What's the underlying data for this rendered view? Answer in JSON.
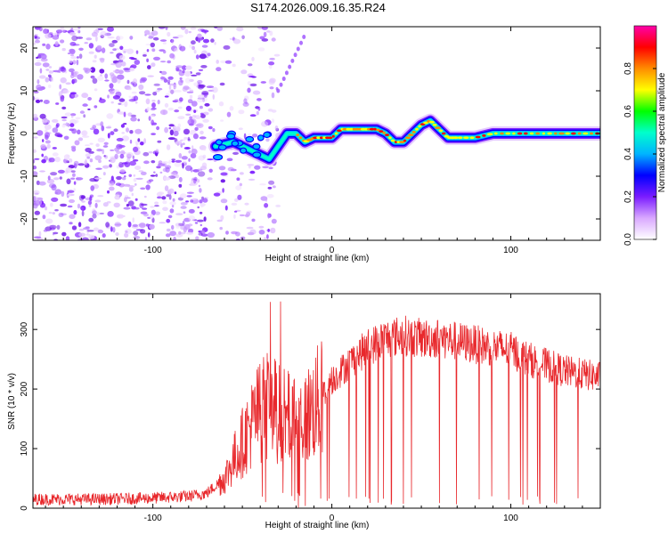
{
  "title": "S174.2026.009.16.35.R24",
  "chart_data": [
    {
      "type": "heatmap",
      "name": "spectrogram",
      "xlabel": "Height of straight line (km)",
      "ylabel": "Frequency (Hz)",
      "xlim": [
        -167,
        150
      ],
      "ylim": [
        -25,
        25
      ],
      "x_ticks": [
        -100,
        0,
        100
      ],
      "x_tick_labels": [
        "-100",
        "0",
        "100"
      ],
      "y_ticks": [
        -20,
        -10,
        0,
        10,
        20
      ],
      "y_tick_labels": [
        "-20",
        "-10",
        "0",
        "10",
        "20"
      ],
      "ridge": {
        "x": [
          -65,
          -55,
          -45,
          -35,
          -25,
          -20,
          -15,
          -10,
          -5,
          0,
          5,
          10,
          15,
          20,
          25,
          30,
          35,
          40,
          45,
          50,
          55,
          60,
          65,
          70,
          80,
          90,
          100,
          110,
          120,
          130,
          140,
          150
        ],
        "y": [
          -3,
          -2,
          -4,
          -6,
          0,
          0,
          -2,
          -1,
          -1,
          -1,
          1,
          1,
          1,
          1,
          1,
          0,
          -2,
          -2,
          0,
          2,
          3,
          1,
          -1,
          -1,
          -1,
          0,
          0,
          0,
          0,
          0,
          0,
          0
        ]
      },
      "colorbar": {
        "label": "Normalized spectral amplitude",
        "range": [
          0.0,
          1.0
        ],
        "ticks": [
          0.0,
          0.2,
          0.4,
          0.6,
          0.8
        ],
        "tick_labels": [
          "0.0",
          "0.2",
          "0.4",
          "0.6",
          "0.8"
        ],
        "colors": [
          "#ffffff",
          "#d9a8ff",
          "#7a1cff",
          "#0000ff",
          "#00b4ff",
          "#00ffcc",
          "#00ff00",
          "#ffff00",
          "#ff8c00",
          "#ff0000",
          "#ff00aa"
        ]
      }
    },
    {
      "type": "line",
      "name": "snr",
      "xlabel": "Height of straight line (km)",
      "ylabel": "SNR (10 * v/v)",
      "xlim": [
        -167,
        150
      ],
      "ylim": [
        0,
        360
      ],
      "x_ticks": [
        -100,
        0,
        100
      ],
      "x_tick_labels": [
        "-100",
        "0",
        "100"
      ],
      "y_ticks": [
        0,
        100,
        200,
        300
      ],
      "y_tick_labels": [
        "0",
        "100",
        "200",
        "300"
      ],
      "color": "#e8282c",
      "series": [
        {
          "name": "SNR",
          "x": [
            -167,
            -130,
            -100,
            -80,
            -70,
            -60,
            -55,
            -50,
            -45,
            -40,
            -35,
            -30,
            -25,
            -20,
            -15,
            -10,
            -5,
            0,
            5,
            10,
            20,
            30,
            40,
            50,
            60,
            70,
            80,
            90,
            100,
            110,
            120,
            130,
            140,
            150
          ],
          "y": [
            15,
            15,
            17,
            20,
            25,
            50,
            80,
            110,
            140,
            165,
            175,
            160,
            150,
            150,
            150,
            170,
            190,
            215,
            230,
            245,
            270,
            285,
            290,
            285,
            285,
            280,
            275,
            270,
            265,
            250,
            240,
            230,
            225,
            220
          ]
        }
      ]
    }
  ]
}
